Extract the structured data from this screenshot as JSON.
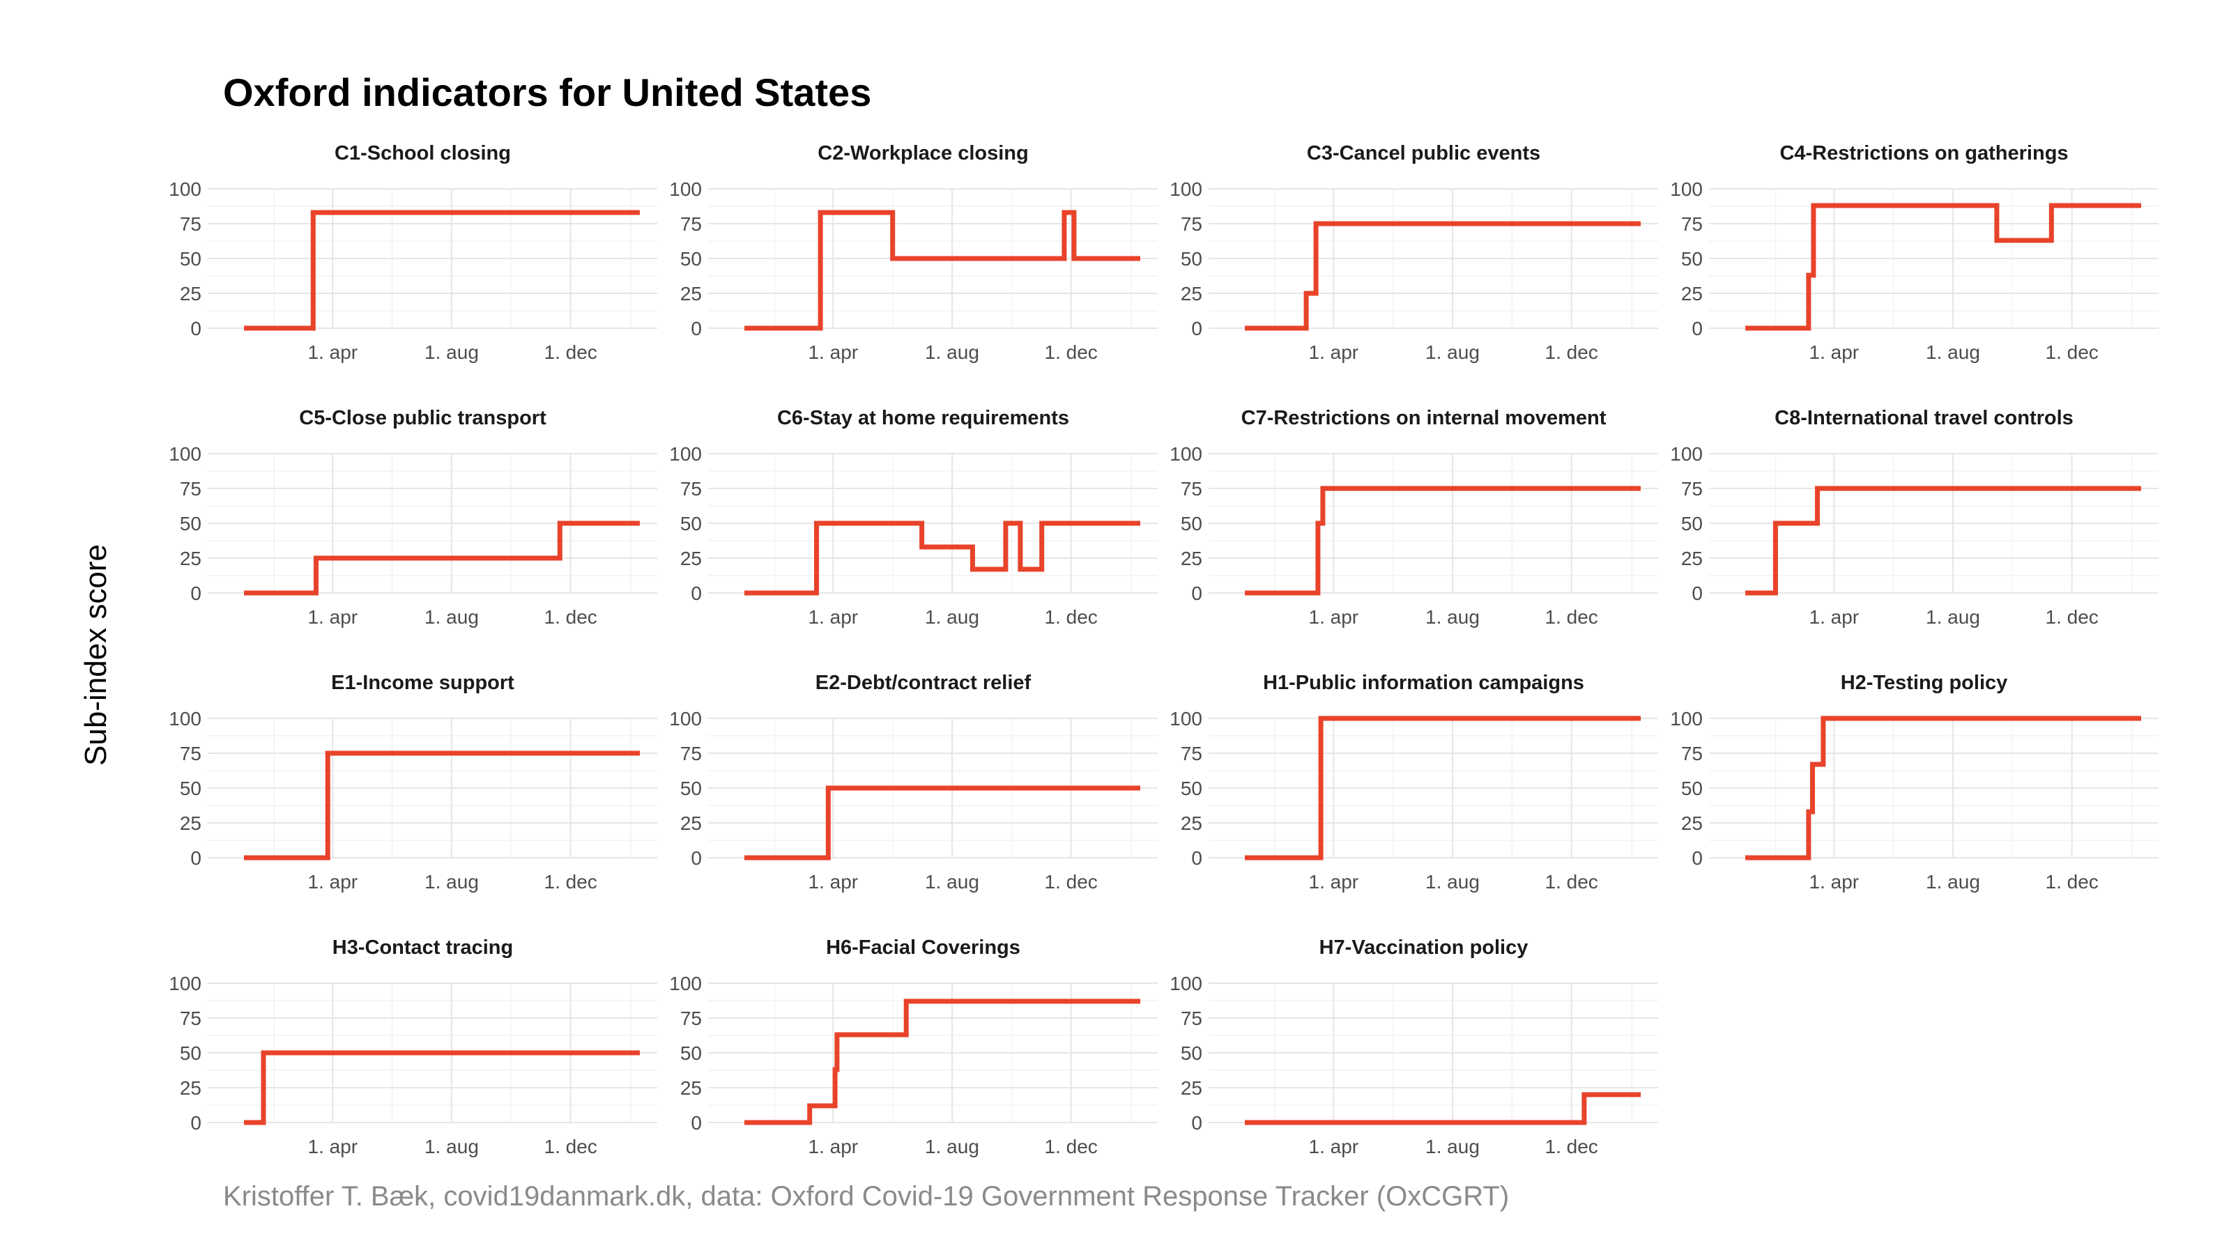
{
  "title": "Oxford indicators for United States",
  "caption": "Kristoffer T. Bæk, covid19danmark.dk, data: Oxford Covid-19 Government Response Tracker (OxCGRT)",
  "colors": {
    "line": "#e8432a"
  },
  "chart_data": {
    "type": "line",
    "ylabel": "Sub-index score",
    "ylim": [
      0,
      100
    ],
    "y_ticks": [
      "0",
      "25",
      "50",
      "75",
      "100"
    ],
    "x_tick_labels": [
      "1. apr",
      "1. aug",
      "1. dec"
    ],
    "x_ticks": [
      "2020-04-01",
      "2020-08-01",
      "2020-12-01"
    ],
    "xlim": [
      "2020-01-01",
      "2021-02-10"
    ],
    "grid": true,
    "panels": [
      {
        "name": "C1-School closing",
        "points": [
          [
            "2020-01-01",
            0
          ],
          [
            "2020-03-12",
            0
          ],
          [
            "2020-03-12",
            83
          ],
          [
            "2021-02-10",
            83
          ]
        ]
      },
      {
        "name": "C2-Workplace closing",
        "points": [
          [
            "2020-01-01",
            0
          ],
          [
            "2020-03-19",
            0
          ],
          [
            "2020-03-19",
            83
          ],
          [
            "2020-06-01",
            83
          ],
          [
            "2020-06-01",
            50
          ],
          [
            "2020-11-24",
            50
          ],
          [
            "2020-11-24",
            83
          ],
          [
            "2020-12-04",
            83
          ],
          [
            "2020-12-04",
            50
          ],
          [
            "2021-02-10",
            50
          ]
        ]
      },
      {
        "name": "C3-Cancel public events",
        "points": [
          [
            "2020-01-01",
            0
          ],
          [
            "2020-03-04",
            0
          ],
          [
            "2020-03-04",
            25
          ],
          [
            "2020-03-14",
            25
          ],
          [
            "2020-03-14",
            75
          ],
          [
            "2021-02-10",
            75
          ]
        ]
      },
      {
        "name": "C4-Restrictions on gatherings",
        "points": [
          [
            "2020-01-01",
            0
          ],
          [
            "2020-03-06",
            0
          ],
          [
            "2020-03-06",
            38
          ],
          [
            "2020-03-11",
            38
          ],
          [
            "2020-03-11",
            88
          ],
          [
            "2020-09-15",
            88
          ],
          [
            "2020-09-15",
            63
          ],
          [
            "2020-11-10",
            63
          ],
          [
            "2020-11-10",
            88
          ],
          [
            "2021-02-10",
            88
          ]
        ]
      },
      {
        "name": "C5-Close public transport",
        "points": [
          [
            "2020-01-01",
            0
          ],
          [
            "2020-03-15",
            0
          ],
          [
            "2020-03-15",
            25
          ],
          [
            "2020-11-20",
            25
          ],
          [
            "2020-11-20",
            50
          ],
          [
            "2021-02-10",
            50
          ]
        ]
      },
      {
        "name": "C6-Stay at home requirements",
        "points": [
          [
            "2020-01-01",
            0
          ],
          [
            "2020-03-15",
            0
          ],
          [
            "2020-03-15",
            50
          ],
          [
            "2020-07-01",
            50
          ],
          [
            "2020-07-01",
            33
          ],
          [
            "2020-08-22",
            33
          ],
          [
            "2020-08-22",
            17
          ],
          [
            "2020-09-25",
            17
          ],
          [
            "2020-09-25",
            50
          ],
          [
            "2020-10-10",
            50
          ],
          [
            "2020-10-10",
            17
          ],
          [
            "2020-11-01",
            17
          ],
          [
            "2020-11-01",
            50
          ],
          [
            "2021-02-10",
            50
          ]
        ]
      },
      {
        "name": "C7-Restrictions on internal movement",
        "points": [
          [
            "2020-01-01",
            0
          ],
          [
            "2020-03-16",
            0
          ],
          [
            "2020-03-16",
            50
          ],
          [
            "2020-03-21",
            50
          ],
          [
            "2020-03-21",
            75
          ],
          [
            "2021-02-10",
            75
          ]
        ]
      },
      {
        "name": "C8-International travel controls",
        "points": [
          [
            "2020-01-01",
            0
          ],
          [
            "2020-02-01",
            0
          ],
          [
            "2020-02-01",
            50
          ],
          [
            "2020-03-15",
            50
          ],
          [
            "2020-03-15",
            75
          ],
          [
            "2021-02-10",
            75
          ]
        ]
      },
      {
        "name": "E1-Income support",
        "points": [
          [
            "2020-01-01",
            0
          ],
          [
            "2020-03-27",
            0
          ],
          [
            "2020-03-27",
            75
          ],
          [
            "2021-02-10",
            75
          ]
        ]
      },
      {
        "name": "E2-Debt/contract relief",
        "points": [
          [
            "2020-01-01",
            0
          ],
          [
            "2020-03-27",
            0
          ],
          [
            "2020-03-27",
            50
          ],
          [
            "2021-02-10",
            50
          ]
        ]
      },
      {
        "name": "H1-Public information campaigns",
        "points": [
          [
            "2020-01-01",
            0
          ],
          [
            "2020-03-19",
            0
          ],
          [
            "2020-03-19",
            100
          ],
          [
            "2021-02-10",
            100
          ]
        ]
      },
      {
        "name": "H2-Testing policy",
        "points": [
          [
            "2020-01-01",
            0
          ],
          [
            "2020-03-06",
            0
          ],
          [
            "2020-03-06",
            33
          ],
          [
            "2020-03-10",
            33
          ],
          [
            "2020-03-10",
            67
          ],
          [
            "2020-03-21",
            67
          ],
          [
            "2020-03-21",
            100
          ],
          [
            "2021-02-10",
            100
          ]
        ]
      },
      {
        "name": "H3-Contact tracing",
        "points": [
          [
            "2020-01-01",
            0
          ],
          [
            "2020-01-21",
            0
          ],
          [
            "2020-01-21",
            50
          ],
          [
            "2021-02-10",
            50
          ]
        ]
      },
      {
        "name": "H6-Facial Coverings",
        "points": [
          [
            "2020-01-01",
            0
          ],
          [
            "2020-03-08",
            0
          ],
          [
            "2020-03-08",
            12
          ],
          [
            "2020-04-03",
            12
          ],
          [
            "2020-04-03",
            38
          ],
          [
            "2020-04-05",
            38
          ],
          [
            "2020-04-05",
            63
          ],
          [
            "2020-06-15",
            63
          ],
          [
            "2020-06-15",
            87
          ],
          [
            "2021-02-10",
            87
          ]
        ]
      },
      {
        "name": "H7-Vaccination policy",
        "points": [
          [
            "2020-01-01",
            0
          ],
          [
            "2020-12-14",
            0
          ],
          [
            "2020-12-14",
            20
          ],
          [
            "2021-02-10",
            20
          ]
        ]
      }
    ]
  }
}
